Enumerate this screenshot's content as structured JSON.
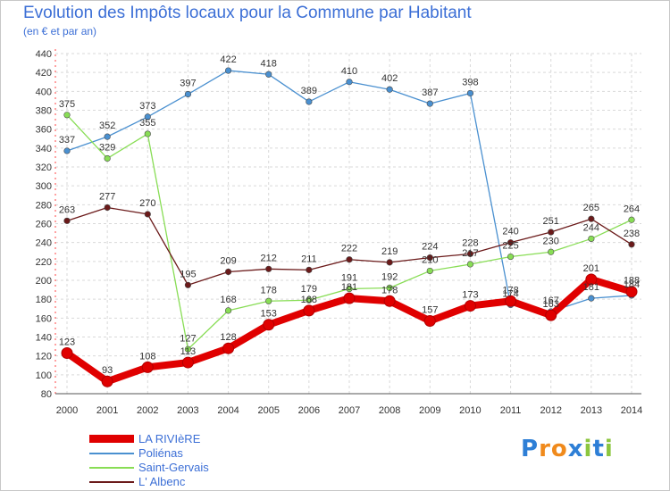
{
  "header": {
    "title": "Evolution des Impôts locaux pour la Commune par Habitant",
    "subtitle": "(en € et par an)"
  },
  "chart_data": {
    "type": "line",
    "title": "Evolution des Impôts locaux pour la Commune par Habitant",
    "subtitle": "(en € et par an)",
    "xlabel": "",
    "ylabel": "",
    "ylim": [
      80,
      440
    ],
    "y_ticks": [
      80,
      100,
      120,
      140,
      160,
      180,
      200,
      220,
      240,
      260,
      280,
      300,
      320,
      340,
      360,
      380,
      400,
      420,
      440
    ],
    "grid": true,
    "legend_position": "bottom-left",
    "categories": [
      "2000",
      "2001",
      "2002",
      "2003",
      "2004",
      "2005",
      "2006",
      "2007",
      "2008",
      "2009",
      "2010",
      "2011",
      "2012",
      "2013",
      "2014"
    ],
    "series": [
      {
        "name": "LA RIVIèRE",
        "color": "#e00000",
        "values": [
          123,
          93,
          108,
          113,
          128,
          153,
          168,
          181,
          178,
          157,
          173,
          178,
          163,
          201,
          188
        ]
      },
      {
        "name": "Poliénas",
        "color": "#4a90d0",
        "values": [
          337,
          352,
          373,
          397,
          422,
          418,
          389,
          410,
          402,
          387,
          398,
          174,
          167,
          181,
          184
        ]
      },
      {
        "name": "Saint-Gervais",
        "color": "#88dd55",
        "values": [
          375,
          329,
          355,
          127,
          168,
          178,
          179,
          191,
          192,
          210,
          217,
          225,
          230,
          244,
          264
        ]
      },
      {
        "name": "L' Albenc",
        "color": "#6b1a1a",
        "values": [
          263,
          277,
          270,
          195,
          209,
          212,
          211,
          222,
          219,
          224,
          228,
          240,
          251,
          265,
          238
        ]
      }
    ]
  },
  "legend": {
    "items": [
      "LA RIVIèRE",
      "Poliénas",
      "Saint-Gervais",
      "L' Albenc"
    ]
  },
  "brand": {
    "logo_text": "Proxiti",
    "letters": [
      "P",
      "r",
      "o",
      "x",
      "i",
      "t",
      "i"
    ],
    "letter_colors": [
      "#2e7fd6",
      "#f08a1c",
      "#f08a1c",
      "#2e7fd6",
      "#8cc63f",
      "#2e7fd6",
      "#8cc63f"
    ]
  }
}
